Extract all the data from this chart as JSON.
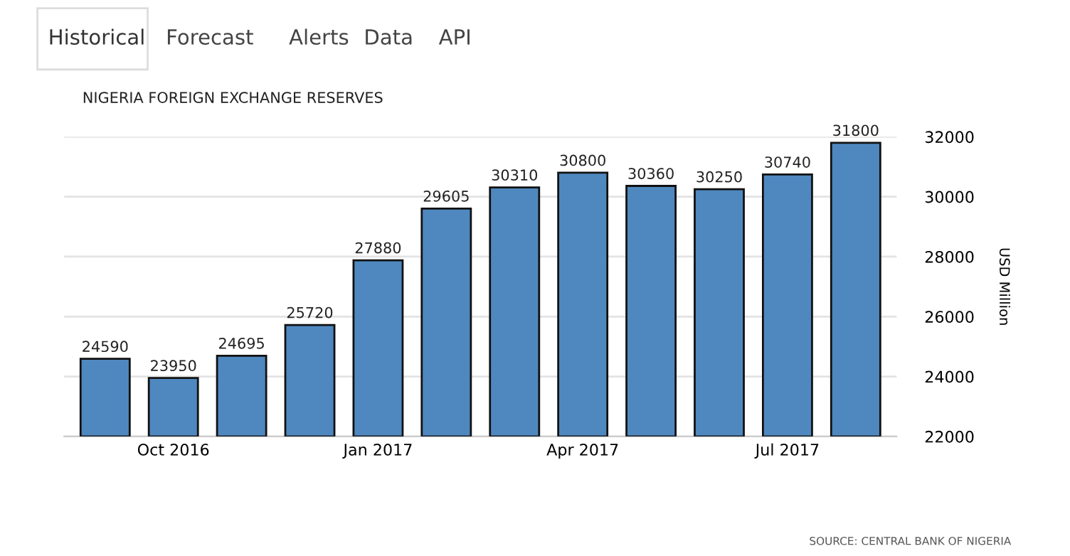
{
  "chart_data": {
    "type": "bar",
    "title": "NIGERIA FOREIGN EXCHANGE RESERVES",
    "ylabel": "USD Million",
    "categories": [
      null,
      "Oct 2016",
      null,
      null,
      "Jan 2017",
      null,
      null,
      "Apr 2017",
      null,
      null,
      "Jul 2017",
      null
    ],
    "values": [
      24590,
      23950,
      24695,
      25720,
      27880,
      29605,
      30310,
      30800,
      30360,
      30250,
      30740,
      31800
    ],
    "color": "#4f88bf",
    "ylim": [
      22000,
      32000
    ],
    "yticks": [
      22000,
      24000,
      26000,
      28000,
      30000,
      32000
    ],
    "grid": "y",
    "data_labels": true,
    "annotations": [
      "Historical",
      "Forecast",
      "Alerts",
      "Data",
      "API",
      "SOURCE: CENTRAL BANK OF NIGERIA"
    ]
  }
}
